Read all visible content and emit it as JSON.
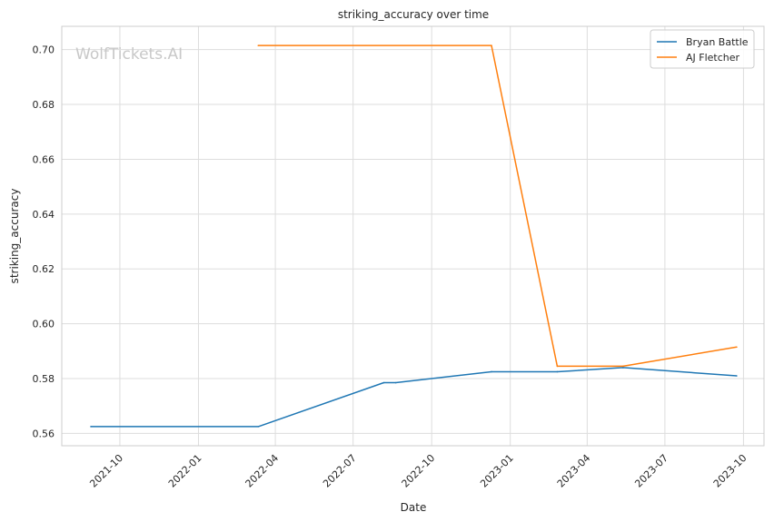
{
  "chart_data": {
    "type": "line",
    "title": "striking_accuracy over time",
    "xlabel": "Date",
    "ylabel": "striking_accuracy",
    "watermark": "WolfTickets.AI",
    "xlim": [
      "2021-07-25",
      "2023-10-25"
    ],
    "ylim": [
      0.5555,
      0.7085
    ],
    "grid": true,
    "legend_position": "top-right",
    "x_ticks": [
      "2021-10",
      "2022-01",
      "2022-04",
      "2022-07",
      "2022-10",
      "2023-01",
      "2023-04",
      "2023-07",
      "2023-10"
    ],
    "y_ticks": [
      "0.56",
      "0.58",
      "0.60",
      "0.62",
      "0.64",
      "0.66",
      "0.68",
      "0.70"
    ],
    "series": [
      {
        "name": "Bryan Battle",
        "color": "#1f77b4",
        "x": [
          "2021-08-28",
          "2022-03-12",
          "2022-08-06",
          "2022-08-20",
          "2022-12-10",
          "2023-02-25",
          "2023-05-13",
          "2023-09-23"
        ],
        "values": [
          0.5625,
          0.5625,
          0.5785,
          0.5785,
          0.5825,
          0.5825,
          0.584,
          0.581
        ]
      },
      {
        "name": "AJ Fletcher",
        "color": "#ff7f0e",
        "x": [
          "2022-03-12",
          "2022-12-10",
          "2023-02-25",
          "2023-05-13",
          "2023-09-23"
        ],
        "values": [
          0.7015,
          0.7015,
          0.5845,
          0.5845,
          0.5915
        ]
      }
    ]
  }
}
